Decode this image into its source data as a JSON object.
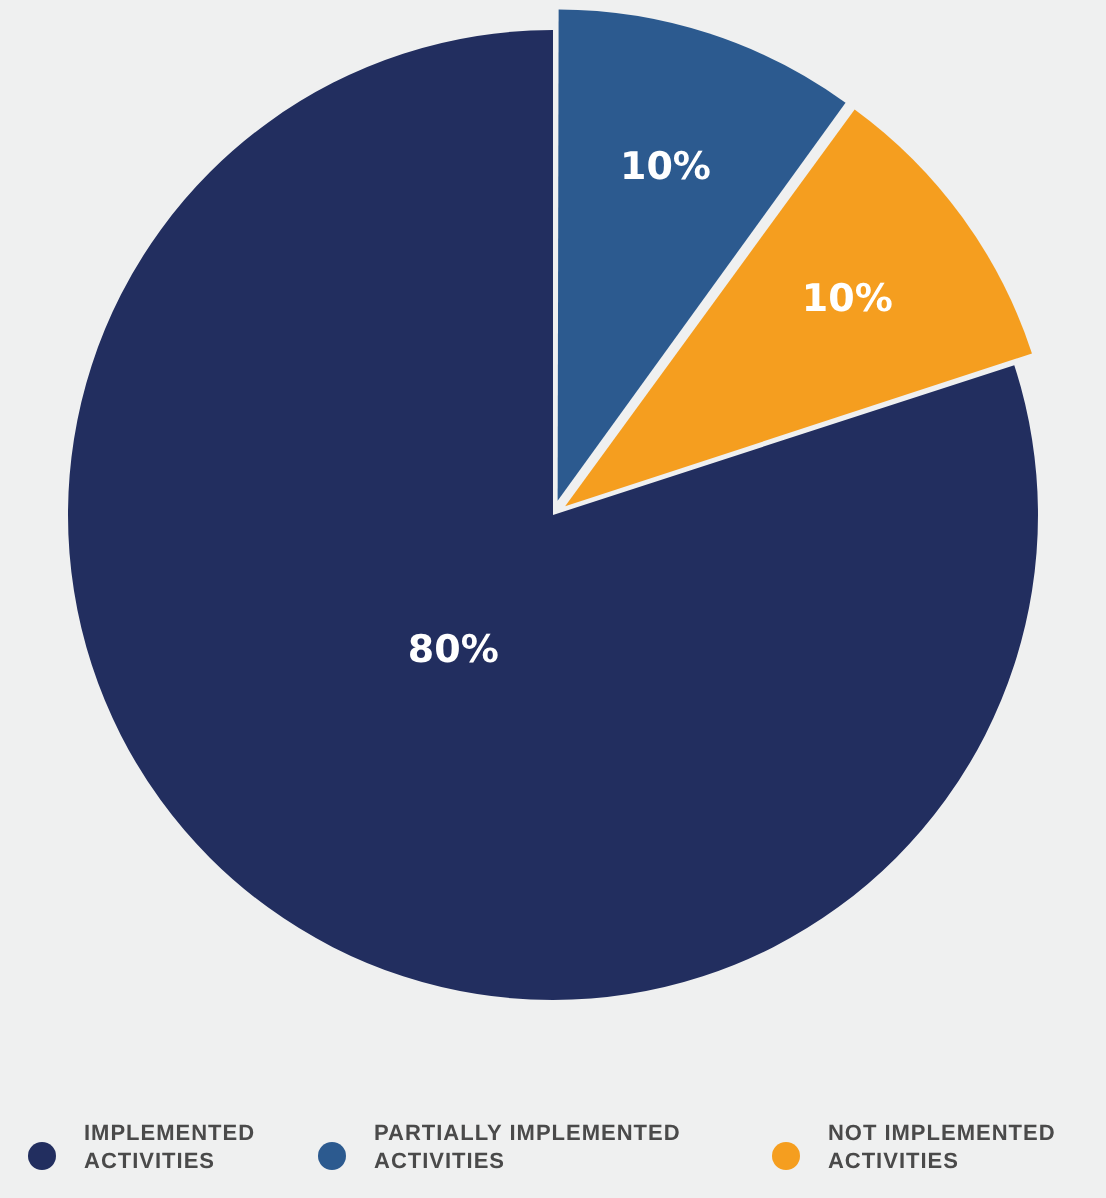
{
  "chart_data": {
    "type": "pie",
    "categories": [
      "IMPLEMENTED ACTIVITIES",
      "PARTIALLY IMPLEMENTED ACTIVITIES",
      "NOT IMPLEMENTED ACTIVITIES"
    ],
    "values": [
      80,
      10,
      10
    ],
    "colors": [
      "#222e5f",
      "#2c5a8f",
      "#f59e1f"
    ],
    "value_labels": [
      "80%",
      "10%",
      "10%"
    ],
    "legend": "bottom"
  }
}
